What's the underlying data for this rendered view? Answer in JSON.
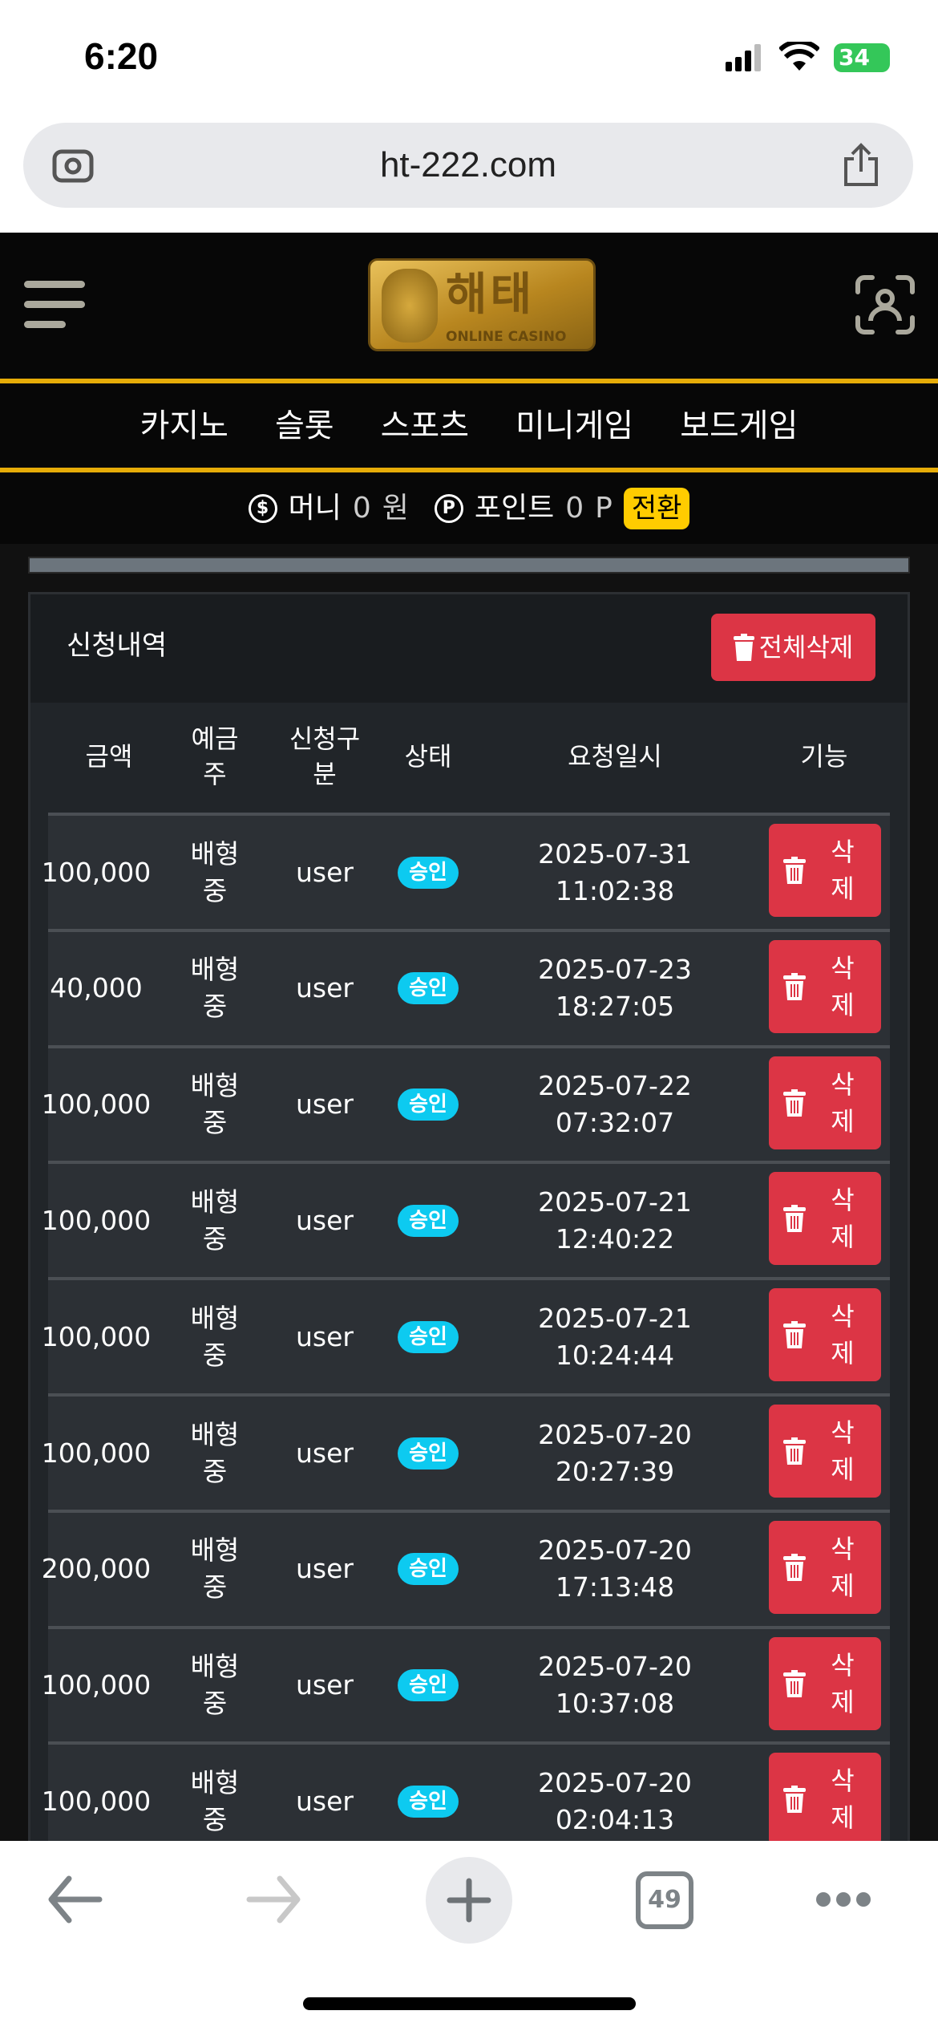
{
  "status_bar": {
    "time": "6:20",
    "battery": "34"
  },
  "browser": {
    "url": "ht-222.com",
    "tab_count": "49"
  },
  "header": {
    "logo_text": "해태",
    "logo_subtext": "ONLINE CASINO"
  },
  "nav": {
    "items": [
      {
        "label": "카지노"
      },
      {
        "label": "슬롯"
      },
      {
        "label": "스포츠"
      },
      {
        "label": "미니게임"
      },
      {
        "label": "보드게임"
      }
    ]
  },
  "balance": {
    "money_label": "머니",
    "money_value": "0",
    "money_unit": "원",
    "point_label": "포인트",
    "point_value": "0",
    "point_unit": "P",
    "convert_label": "전환"
  },
  "card": {
    "title": "신청내역",
    "delete_all_label": "전체삭제"
  },
  "table": {
    "headers": [
      "금액",
      "예금주",
      "신청구분",
      "상태",
      "요청일시",
      "기능"
    ],
    "delete_label": "삭제",
    "rows": [
      {
        "amount": "100,000",
        "holder": "배형중",
        "type": "user",
        "status": "승인",
        "date": "2025-07-31",
        "time": "11:02:38"
      },
      {
        "amount": "40,000",
        "holder": "배형중",
        "type": "user",
        "status": "승인",
        "date": "2025-07-23",
        "time": "18:27:05"
      },
      {
        "amount": "100,000",
        "holder": "배형중",
        "type": "user",
        "status": "승인",
        "date": "2025-07-22",
        "time": "07:32:07"
      },
      {
        "amount": "100,000",
        "holder": "배형중",
        "type": "user",
        "status": "승인",
        "date": "2025-07-21",
        "time": "12:40:22"
      },
      {
        "amount": "100,000",
        "holder": "배형중",
        "type": "user",
        "status": "승인",
        "date": "2025-07-21",
        "time": "10:24:44"
      },
      {
        "amount": "100,000",
        "holder": "배형중",
        "type": "user",
        "status": "승인",
        "date": "2025-07-20",
        "time": "20:27:39"
      },
      {
        "amount": "200,000",
        "holder": "배형중",
        "type": "user",
        "status": "승인",
        "date": "2025-07-20",
        "time": "17:13:48"
      },
      {
        "amount": "100,000",
        "holder": "배형중",
        "type": "user",
        "status": "승인",
        "date": "2025-07-20",
        "time": "10:37:08"
      },
      {
        "amount": "100,000",
        "holder": "배형중",
        "type": "user",
        "status": "승인",
        "date": "2025-07-20",
        "time": "02:04:13"
      }
    ]
  },
  "colors": {
    "accent_gold": "#e6ac08",
    "danger": "#dc3545",
    "badge": "#0dcaf0",
    "convert": "#ffcc00"
  }
}
